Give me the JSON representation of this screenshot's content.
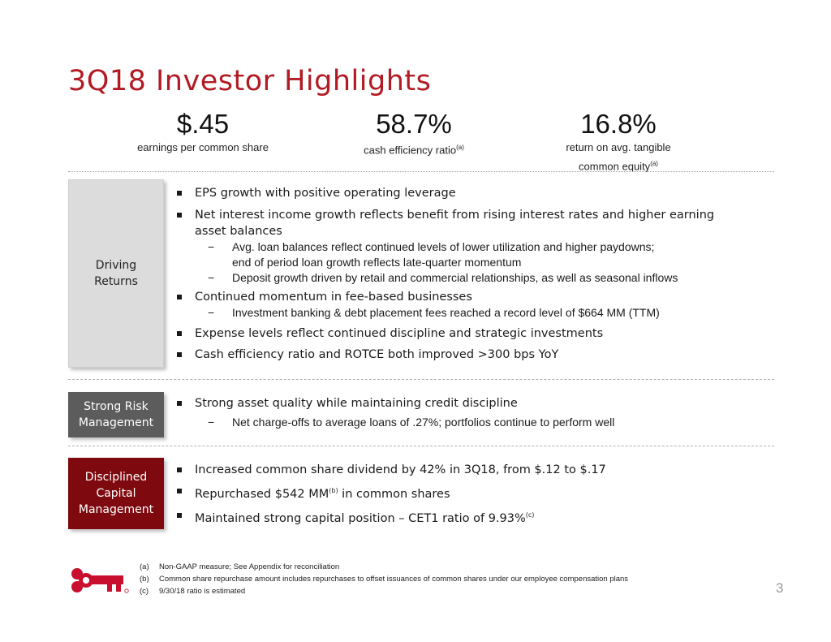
{
  "title": "3Q18 Investor Highlights",
  "metrics": [
    {
      "value": "$.45",
      "label": "earnings per common share"
    },
    {
      "value": "58.7%",
      "label": "cash efficiency ratio",
      "sup": "(a)"
    },
    {
      "value": "16.8%",
      "label_line1": "return on avg. tangible",
      "label_line2": "common equity",
      "sup": "(a)"
    }
  ],
  "sections": {
    "driving": {
      "label_line1": "Driving",
      "label_line2": "Returns",
      "b1": "EPS growth with positive operating leverage",
      "b2_line1": "Net interest income growth reflects benefit from rising interest rates and higher earning",
      "b2_line2": "asset balances",
      "b2_sub1_line1": "Avg. loan balances reflect continued levels of lower utilization and higher paydowns;",
      "b2_sub1_line2": "end of period loan growth reflects late-quarter momentum",
      "b2_sub2": "Deposit growth driven by retail and commercial relationships, as well as seasonal inflows",
      "b3": "Continued momentum in fee-based businesses",
      "b3_sub1": "Investment banking & debt placement fees reached a record level of $664 MM (TTM)",
      "b4": "Expense levels reflect continued discipline and strategic investments",
      "b5": "Cash efficiency ratio and ROTCE both improved >300 bps YoY"
    },
    "risk": {
      "label_line1": "Strong Risk",
      "label_line2": "Management",
      "b1": "Strong asset quality while maintaining credit discipline",
      "b1_sub1": "Net charge-offs to average loans of .27%; portfolios continue to perform well"
    },
    "capital": {
      "label_line1": "Disciplined",
      "label_line2": "Capital",
      "label_line3": "Management",
      "b1": "Increased common share dividend by 42% in 3Q18, from $.12 to $.17",
      "b2_pre": "Repurchased $542 MM",
      "b2_sup": "(b)",
      "b2_post": " in common shares",
      "b3_pre": "Maintained strong capital position – CET1 ratio of 9.93%",
      "b3_sup": "(c)"
    }
  },
  "footnotes": [
    {
      "tag": "(a)",
      "text": "Non-GAAP measure; See Appendix for reconciliation"
    },
    {
      "tag": "(b)",
      "text": "Common share repurchase amount includes repurchases to offset issuances of common shares under our employee compensation plans"
    },
    {
      "tag": "(c)",
      "text": "9/30/18 ratio is estimated"
    }
  ],
  "page_number": "3",
  "logo_color": "#c8102e"
}
